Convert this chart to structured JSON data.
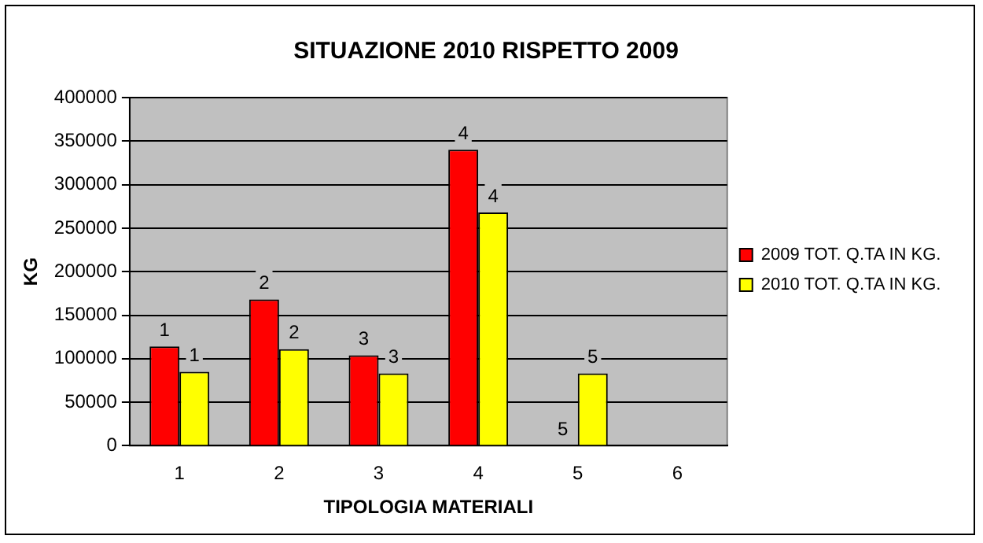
{
  "chart_data": {
    "type": "bar",
    "title": "SITUAZIONE 2010 RISPETTO 2009",
    "xlabel": "TIPOLOGIA MATERIALI",
    "ylabel": "KG",
    "categories": [
      "1",
      "2",
      "3",
      "4",
      "5",
      "6"
    ],
    "series": [
      {
        "name": "2009 TOT. Q.TA IN KG.",
        "color": "#ff0000",
        "values": [
          114000,
          168000,
          104000,
          340000,
          0,
          null
        ]
      },
      {
        "name": "2010 TOT. Q.TA IN KG.",
        "color": "#ffff00",
        "values": [
          85000,
          111000,
          83000,
          268000,
          83000,
          null
        ]
      }
    ],
    "annotations": [
      {
        "text": "1",
        "x": "1",
        "y": 114000
      },
      {
        "text": "1",
        "x": "1",
        "y": 85000
      },
      {
        "text": "2",
        "x": "2",
        "y": 168000
      },
      {
        "text": "2",
        "x": "2",
        "y": 111000
      },
      {
        "text": "3",
        "x": "3",
        "y": 104000
      },
      {
        "text": "3",
        "x": "3",
        "y": 83000
      },
      {
        "text": "4",
        "x": "4",
        "y": 340000
      },
      {
        "text": "4",
        "x": "4",
        "y": 268000
      },
      {
        "text": "5",
        "x": "5",
        "y": 0
      },
      {
        "text": "5",
        "x": "5",
        "y": 83000
      }
    ],
    "ylim": [
      0,
      400000
    ],
    "yticks": [
      0,
      50000,
      100000,
      150000,
      200000,
      250000,
      300000,
      350000,
      400000
    ],
    "grid": "y",
    "legend": "right"
  }
}
